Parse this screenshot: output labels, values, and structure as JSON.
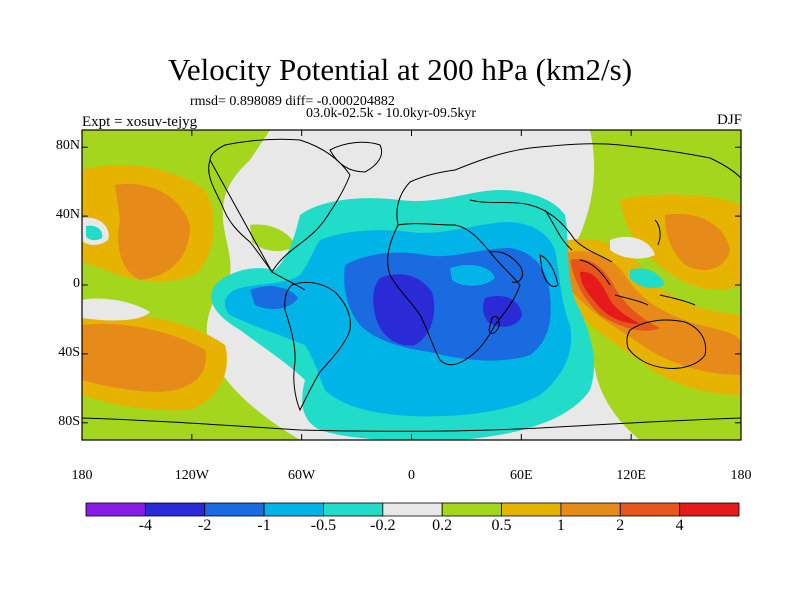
{
  "title": "Velocity Potential at 200 hPa (km2/s)",
  "stats_line": "rmsd= 0.898089 diff= -0.000204882",
  "period_line": "03.0k-02.5k - 10.0kyr-09.5kyr",
  "experiment": "Expt = xosuv-tejyg",
  "season": "DJF",
  "lat_ticks": [
    {
      "label": "80N",
      "value": 80
    },
    {
      "label": "40N",
      "value": 40
    },
    {
      "label": "0",
      "value": 0
    },
    {
      "label": "40S",
      "value": -40
    },
    {
      "label": "80S",
      "value": -80
    }
  ],
  "lon_ticks": [
    {
      "label": "180",
      "value": -180
    },
    {
      "label": "120W",
      "value": -120
    },
    {
      "label": "60W",
      "value": -60
    },
    {
      "label": "0",
      "value": 0
    },
    {
      "label": "60E",
      "value": 60
    },
    {
      "label": "120E",
      "value": 120
    },
    {
      "label": "180",
      "value": 180
    }
  ],
  "colorbar": {
    "colors": [
      "#8a1ae6",
      "#2a2ad6",
      "#1a6ae0",
      "#00b4e8",
      "#20dcc8",
      "#e8e8e8",
      "#a4d61e",
      "#e6b400",
      "#e68a1a",
      "#e6561a",
      "#e61a1a"
    ],
    "labels": [
      "-4",
      "-2",
      "-1",
      "-0.5",
      "-0.2",
      "0.2",
      "0.5",
      "1",
      "2",
      "4"
    ]
  }
}
